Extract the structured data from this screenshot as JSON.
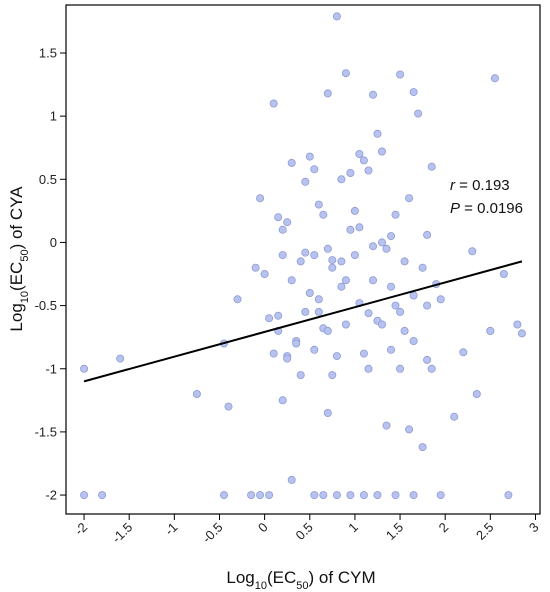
{
  "chart_data": {
    "type": "scatter",
    "title": "",
    "xlabel": {
      "pre": "Log",
      "sub1": "10",
      "mid": "(EC",
      "sub2": "50",
      "post": ") of CYM"
    },
    "ylabel": {
      "pre": "Log",
      "sub1": "10",
      "mid": "(EC",
      "sub2": "50",
      "post": ") of CYA"
    },
    "xlim": [
      -2.2,
      3.05
    ],
    "ylim": [
      -2.15,
      1.88
    ],
    "xticks": [
      -2,
      -1.5,
      -1,
      -0.5,
      0,
      0.5,
      1,
      1.5,
      2,
      2.5,
      3
    ],
    "xtick_labels": [
      "-2",
      "-1.5",
      "-1",
      "-0.5",
      "0",
      "0.5",
      "1",
      "1.5",
      "2",
      "2.5",
      "3"
    ],
    "yticks": [
      1.5,
      1,
      0.5,
      0,
      -0.5,
      -1,
      -1.5,
      -2
    ],
    "ytick_labels": [
      "1.5",
      "1",
      "0.5",
      "0",
      "-0.5",
      "-1",
      "-1.5",
      "-2"
    ],
    "grid": false,
    "legend": "none",
    "annotation": {
      "r_label": "r",
      "r_value": " = 0.193",
      "p_label": "P",
      "p_value": " = 0.0196"
    },
    "regression": {
      "x": [
        -2.0,
        2.85
      ],
      "y": [
        -1.1,
        -0.15
      ]
    },
    "colors": {
      "point_fill": "#b7c2ee",
      "point_stroke": "#8e9ad6",
      "line": "#000000"
    },
    "points": {
      "x": [
        -2.0,
        -1.6,
        -0.4,
        0.2,
        0.5,
        0.7,
        1.5,
        0.8,
        0.9,
        0.95,
        1.2,
        1.65,
        1.7,
        0.1,
        0.55,
        1.05,
        1.3,
        2.55,
        0.6,
        1.1,
        1.15,
        1.25,
        1.85,
        0.3,
        0.45,
        0.65,
        0.85,
        1.45,
        1.6,
        -0.05,
        0.15,
        0.25,
        0.7,
        0.95,
        1.4,
        1.8,
        0.2,
        0.4,
        0.75,
        1.0,
        1.35,
        1.55,
        1.75,
        2.3,
        0.0,
        0.3,
        0.5,
        0.6,
        0.85,
        1.2,
        1.45,
        1.65,
        1.95,
        -0.3,
        0.05,
        0.45,
        0.65,
        1.05,
        1.25,
        1.5,
        1.8,
        0.15,
        0.35,
        0.7,
        0.9,
        1.3,
        1.55,
        2.5,
        2.8,
        -0.45,
        0.25,
        0.55,
        0.8,
        1.1,
        1.4,
        1.65,
        2.2,
        2.85,
        -0.75,
        0.2,
        0.4,
        0.75,
        1.15,
        1.5,
        1.85,
        2.1,
        2.35,
        -2.0,
        -1.8,
        -0.45,
        -0.15,
        -0.05,
        0.05,
        0.55,
        0.65,
        0.8,
        0.95,
        1.1,
        1.25,
        1.45,
        1.65,
        1.95,
        2.7,
        0.3,
        0.7,
        1.35,
        1.75,
        1.6,
        0.9,
        1.3,
        0.75,
        1.0,
        1.2,
        0.45,
        1.05,
        0.25,
        1.4,
        0.15,
        0.85,
        2.5,
        -0.1,
        0.6,
        1.9,
        2.65,
        0.1,
        1.15,
        0.35,
        0.55,
        1.8
      ],
      "y": [
        -1.0,
        -0.92,
        -1.3,
        0.1,
        0.68,
        1.18,
        1.33,
        1.79,
        1.34,
        0.55,
        1.17,
        1.19,
        1.02,
        1.1,
        0.58,
        0.7,
        0.72,
        1.3,
        0.3,
        0.65,
        0.57,
        0.86,
        0.6,
        0.63,
        0.48,
        0.22,
        0.5,
        0.22,
        0.35,
        0.35,
        0.2,
        0.16,
        -0.05,
        0.1,
        0.05,
        0.06,
        -0.1,
        -0.15,
        -0.2,
        -0.1,
        -0.05,
        -0.15,
        -0.2,
        -0.07,
        -0.25,
        -0.3,
        -0.4,
        -0.45,
        -0.35,
        -0.3,
        -0.5,
        -0.42,
        -0.45,
        -0.45,
        -0.6,
        -0.55,
        -0.68,
        -0.48,
        -0.62,
        -0.55,
        -0.5,
        -0.7,
        -0.78,
        -0.7,
        -0.65,
        -0.65,
        -0.7,
        -0.7,
        -0.65,
        -0.8,
        -0.9,
        -0.85,
        -0.9,
        -0.88,
        -0.85,
        -0.78,
        -0.87,
        -0.72,
        -1.2,
        -1.25,
        -1.05,
        -1.05,
        -1.0,
        -1.0,
        -1.0,
        -1.38,
        -1.2,
        -2.0,
        -2.0,
        -2.0,
        -2.0,
        -2.0,
        -2.0,
        -2.0,
        -2.0,
        -2.0,
        -2.0,
        -2.0,
        -2.0,
        -2.0,
        -2.0,
        -2.0,
        -2.0,
        -1.88,
        -1.35,
        -1.45,
        -1.62,
        -1.48,
        -0.3,
        0.0,
        -0.14,
        0.25,
        -0.03,
        -0.08,
        0.12,
        -0.92,
        -0.35,
        -0.58,
        -0.15,
        -0.7,
        -0.2,
        -0.55,
        -0.33,
        -0.25,
        -0.88,
        -0.56,
        -0.8,
        -0.1,
        -0.93
      ]
    }
  }
}
